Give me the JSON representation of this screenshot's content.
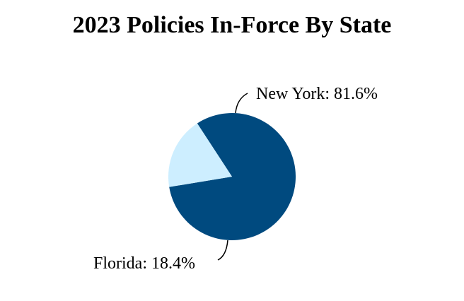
{
  "chart_data": {
    "type": "pie",
    "title": "2023 Policies In-Force By State",
    "slices": [
      {
        "label": "New York",
        "value": 81.6,
        "display": "New York: 81.6%",
        "color": "#004a7f"
      },
      {
        "label": "Florida",
        "value": 18.4,
        "display": "Florida: 18.4%",
        "color": "#cdeeff"
      }
    ],
    "legend": "none"
  }
}
